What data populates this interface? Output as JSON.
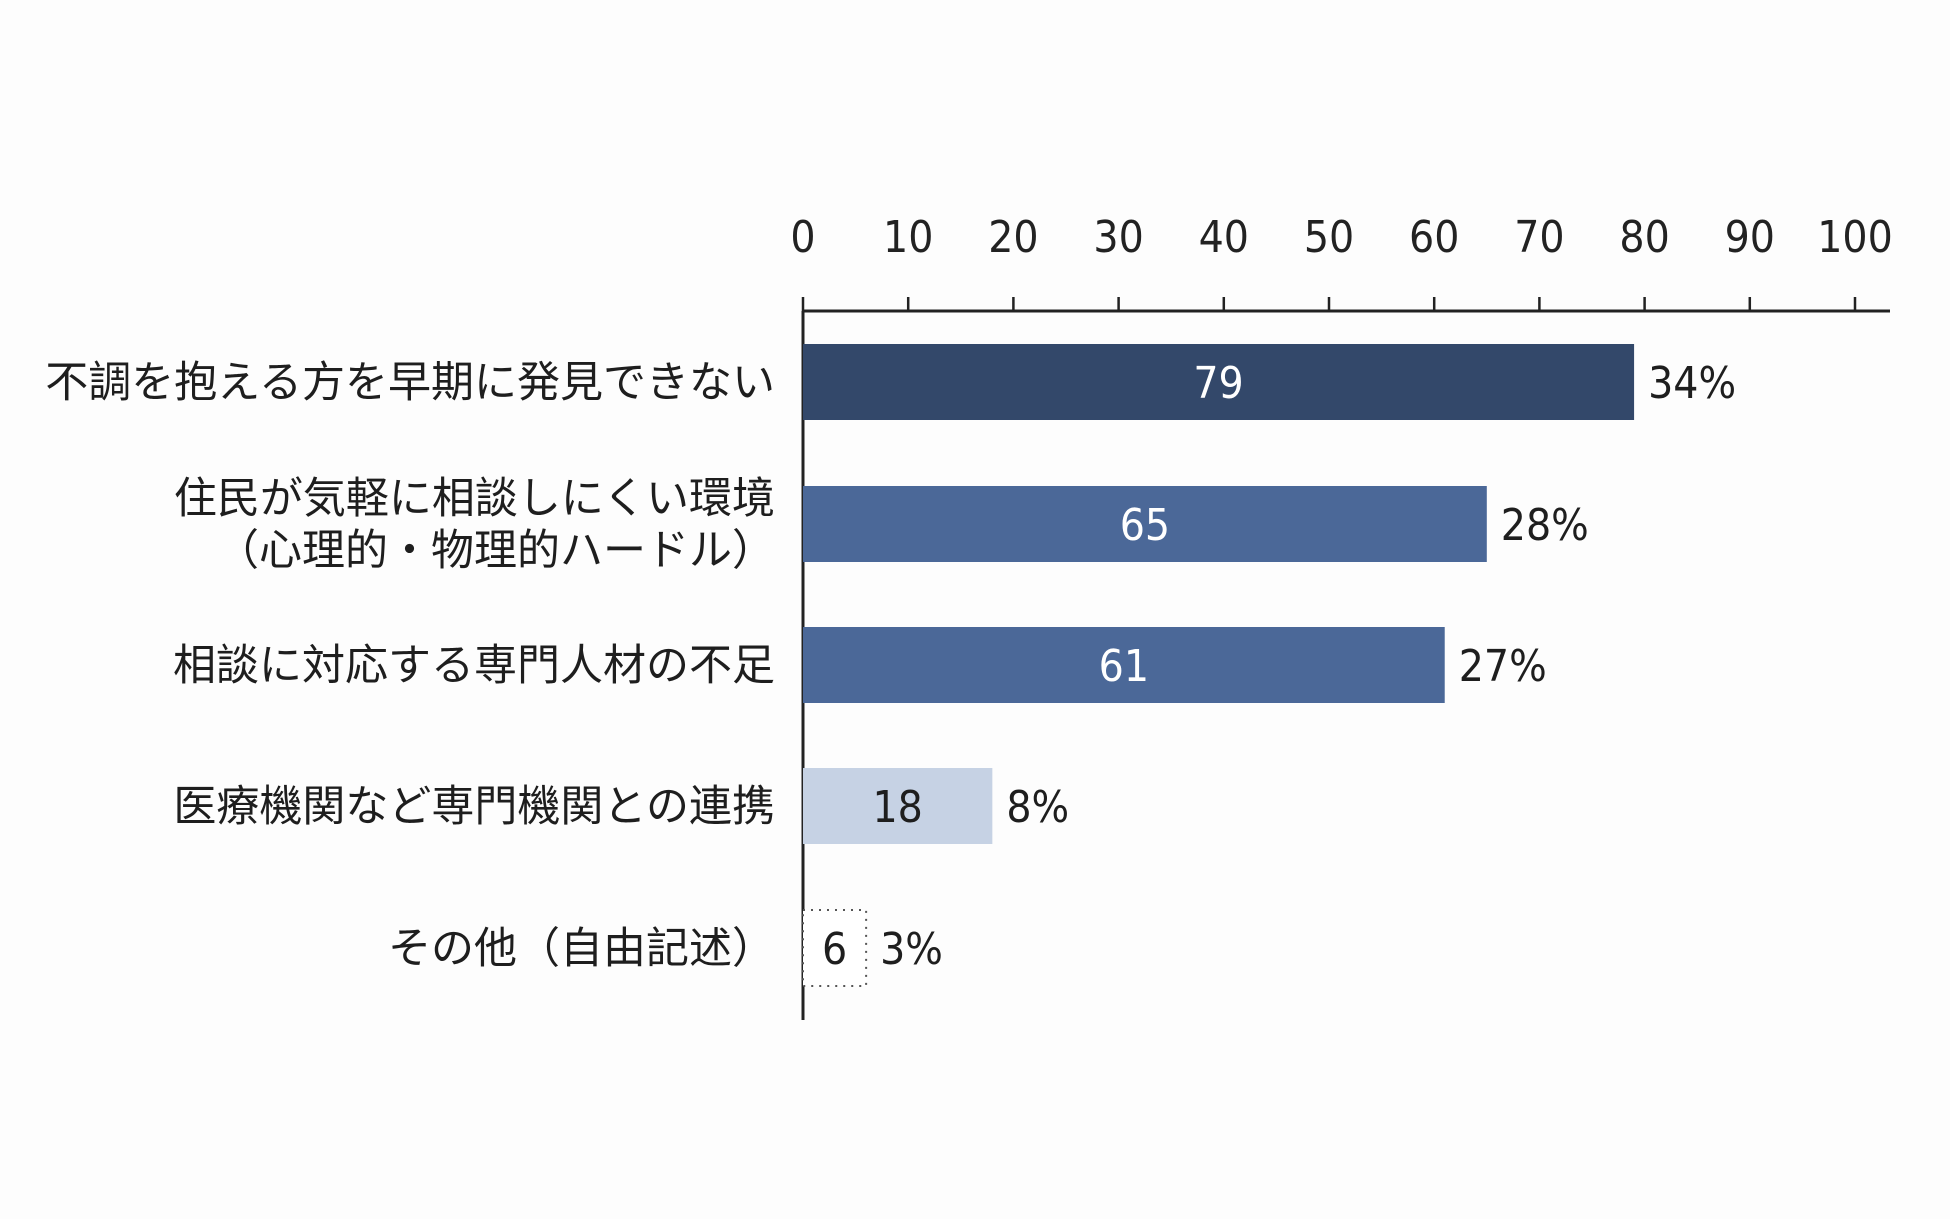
{
  "chart_data": {
    "type": "bar",
    "orientation": "horizontal",
    "categories": [
      [
        "不調を抱える方を早期に発見できない"
      ],
      [
        "住民が気軽に相談しにくい環境",
        "（心理的・物理的ハードル）"
      ],
      [
        "相談に対応する専門人材の不足"
      ],
      [
        "医療機関など専門機関との連携"
      ],
      [
        "その他（自由記述）"
      ]
    ],
    "values": [
      79,
      65,
      61,
      18,
      6
    ],
    "percent_labels": [
      "34%",
      "28%",
      "27%",
      "8%",
      "3%"
    ],
    "bar_colors": [
      "#33486a",
      "#4b6898",
      "#4b6898",
      "#c6d2e4",
      "#ffffff"
    ],
    "value_text_colors": [
      "#ffffff",
      "#ffffff",
      "#ffffff",
      "#1e1e1e",
      "#1e1e1e"
    ],
    "xlim": [
      0,
      100
    ],
    "xticks": [
      0,
      10,
      20,
      30,
      40,
      50,
      60,
      70,
      80,
      90,
      100
    ],
    "axis_position": "top",
    "grid": false,
    "title": "",
    "xlabel": "",
    "ylabel": ""
  }
}
